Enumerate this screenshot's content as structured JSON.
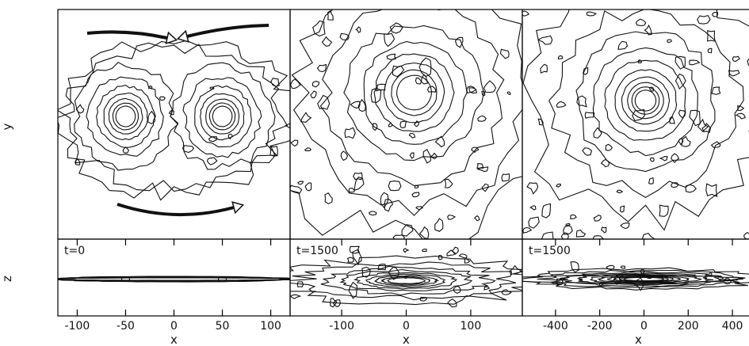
{
  "chart_data": {
    "type": "contour",
    "ylabel_top": "y",
    "ylabel_bottom": "z",
    "columns": [
      {
        "time_label": "t=0",
        "xlabel": "x",
        "xticks": [
          -100,
          -50,
          0,
          50,
          100
        ],
        "xlim": [
          -120,
          120
        ],
        "face_on": {
          "components": [
            {
              "x": -50,
              "y": 0
            },
            {
              "x": 50,
              "y": 0
            }
          ],
          "arrows": "orbital-motion"
        },
        "edge_on": {
          "components": [
            {
              "x": -50,
              "z": 0
            },
            {
              "x": 50,
              "z": 0
            }
          ]
        }
      },
      {
        "time_label": "t=1500",
        "xlabel": "x",
        "xticks": [
          -100,
          0,
          100
        ],
        "xlim": [
          -180,
          180
        ],
        "face_on": {
          "components": [
            {
              "x": 0,
              "y": 0
            }
          ]
        },
        "edge_on": {
          "components": [
            {
              "x": 0,
              "z": 0
            }
          ]
        }
      },
      {
        "time_label": "t=1500",
        "xlabel": "x",
        "xticks": [
          -400,
          -200,
          0,
          200,
          400
        ],
        "xlim": [
          -550,
          500
        ],
        "face_on": {
          "components": [
            {
              "x": 0,
              "y": 0
            }
          ]
        },
        "edge_on": {
          "components": [
            {
              "x": 0,
              "z": 0
            }
          ]
        }
      }
    ],
    "grid": false,
    "legend": "none"
  }
}
